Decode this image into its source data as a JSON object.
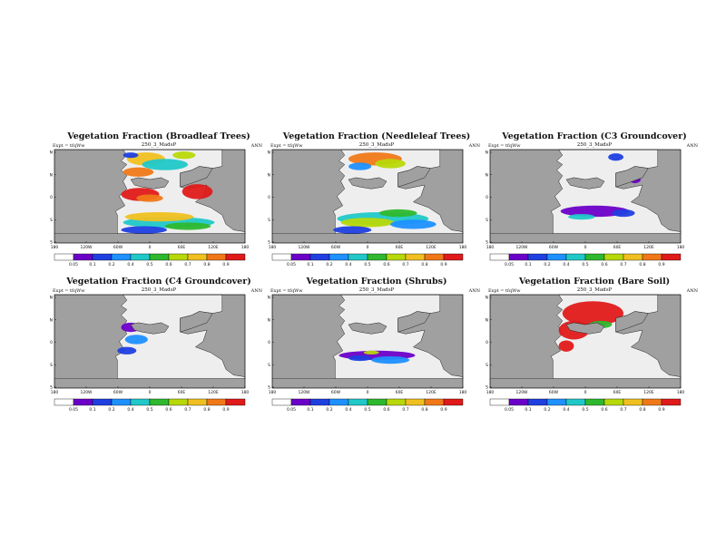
{
  "figure": {
    "panels": [
      {
        "title": "Vegetation Fraction (Broadleaf Trees)",
        "subtitle": "250_3_MadsP",
        "left_label": "Expt = tfqWw",
        "right_label": "ANN",
        "colorbar_first": "0.05"
      },
      {
        "title": "Vegetation Fraction (Needleleaf Trees)",
        "subtitle": "250_3_MadsP",
        "left_label": "Expt = tfqWw",
        "right_label": "ANN",
        "colorbar_first": "0.05"
      },
      {
        "title": "Vegetation Fraction (C3 Groundcover)",
        "subtitle": "250_3_MadsP",
        "left_label": "Expt = tfqWw",
        "right_label": "ANN",
        "colorbar_first": "0.05"
      },
      {
        "title": "Vegetation Fraction (C4 Groundcover)",
        "subtitle": "250_3_MadsP",
        "left_label": "Expt = tfqWw",
        "right_label": "ANN",
        "colorbar_first": "0.05"
      },
      {
        "title": "Vegetation Fraction (Shrubs)",
        "subtitle": "250_3_MadsP",
        "left_label": "Expt = tfqWw",
        "right_label": "ANN",
        "colorbar_first": "0.05"
      },
      {
        "title": "Vegetation Fraction (Bare Soil)",
        "subtitle": "250_3_MadsP",
        "left_label": "Expt = tfqWw",
        "right_label": "ANN",
        "colorbar_first": "0.05"
      }
    ],
    "lat_labels": [
      "90N",
      "45N",
      "0",
      "45S",
      "90S"
    ],
    "lon_labels": [
      "180",
      "120W",
      "60W",
      "0",
      "60E",
      "120E",
      "180"
    ],
    "colorbar_labels": [
      "0.1",
      "0.2",
      "0.4",
      "0.5",
      "0.6",
      "0.7",
      "0.8",
      "0.9"
    ],
    "colorbar_colors": [
      "#ffffff",
      "#6b00c8",
      "#1f3fe0",
      "#1e90ff",
      "#20c8c8",
      "#2eb82e",
      "#b8d80a",
      "#f0c020",
      "#f07818",
      "#e01a1a"
    ],
    "ocean_color": "#a0a0a0",
    "land_color": "#eeeeee"
  }
}
